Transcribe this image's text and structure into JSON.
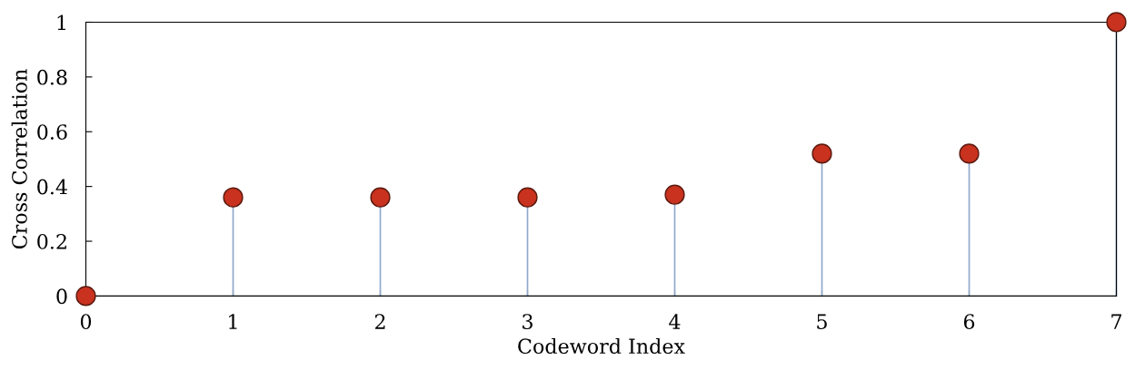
{
  "chart_data": {
    "type": "lollipop",
    "xlabel": "Codeword Index",
    "ylabel": "Cross Correlation",
    "x": [
      0,
      1,
      2,
      3,
      4,
      5,
      6,
      7
    ],
    "series": [
      {
        "color": "#c8321e",
        "values": [
          0,
          0.36,
          0.36,
          0.36,
          0.37,
          0.52,
          0.52,
          1.0
        ]
      }
    ],
    "xlim": [
      0,
      7
    ],
    "xticks": [
      0,
      1,
      2,
      3,
      4,
      5,
      6,
      7
    ],
    "ylim": [
      0,
      1
    ],
    "yticks": [
      0,
      0.2,
      0.4,
      0.6,
      0.8,
      1
    ],
    "grid": false,
    "marker": "circle"
  }
}
